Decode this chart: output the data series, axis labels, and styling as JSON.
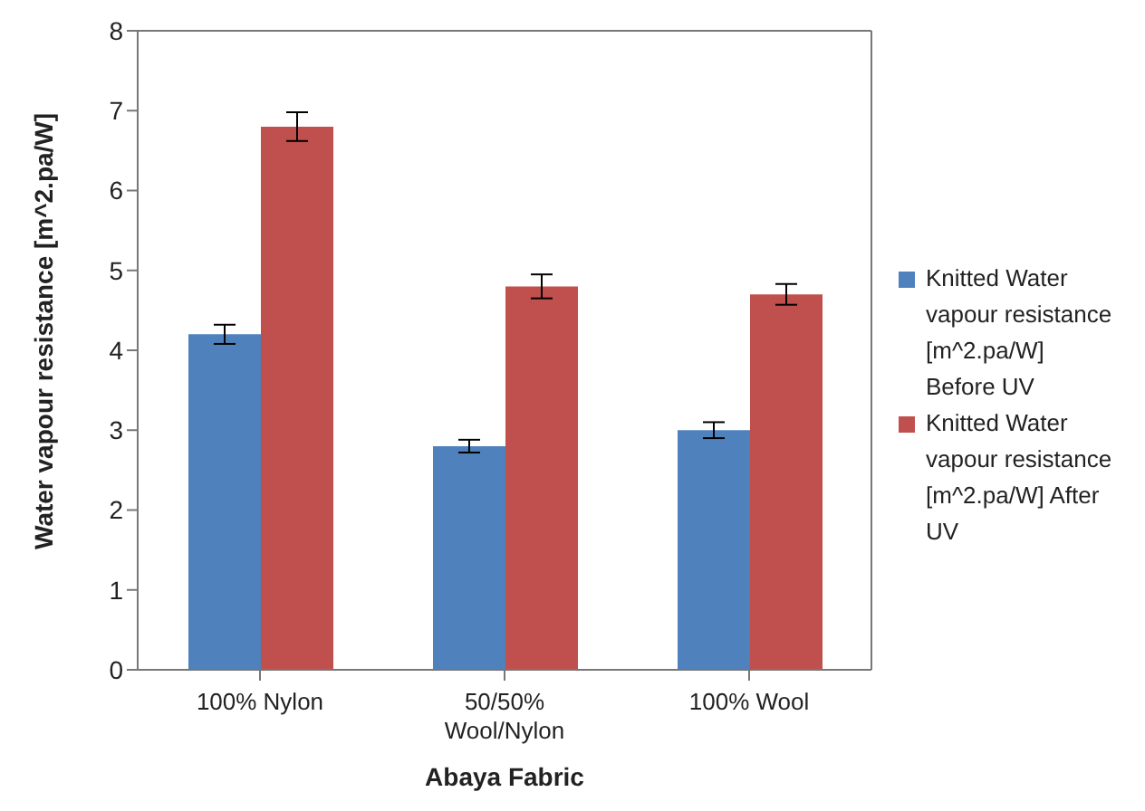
{
  "chart_data": {
    "type": "bar",
    "xlabel": "Abaya Fabric",
    "ylabel": "Water vapour resistance [m^2.pa/W]",
    "categories": [
      "100% Nylon",
      "50/50% Wool/Nylon",
      "100% Wool"
    ],
    "series": [
      {
        "name": "Knitted Water vapour resistance [m^2.pa/W] Before UV",
        "color": "#4f81bd",
        "values": [
          4.2,
          2.8,
          3.0
        ],
        "errors": [
          0.12,
          0.08,
          0.1
        ]
      },
      {
        "name": "Knitted Water vapour resistance [m^2.pa/W] After UV",
        "color": "#c0504d",
        "values": [
          6.8,
          4.8,
          4.7
        ],
        "errors": [
          0.18,
          0.15,
          0.13
        ]
      }
    ],
    "ylim": [
      0,
      8
    ],
    "yticks": [
      0,
      1,
      2,
      3,
      4,
      5,
      6,
      7,
      8
    ],
    "grid": false,
    "legend": "right"
  }
}
